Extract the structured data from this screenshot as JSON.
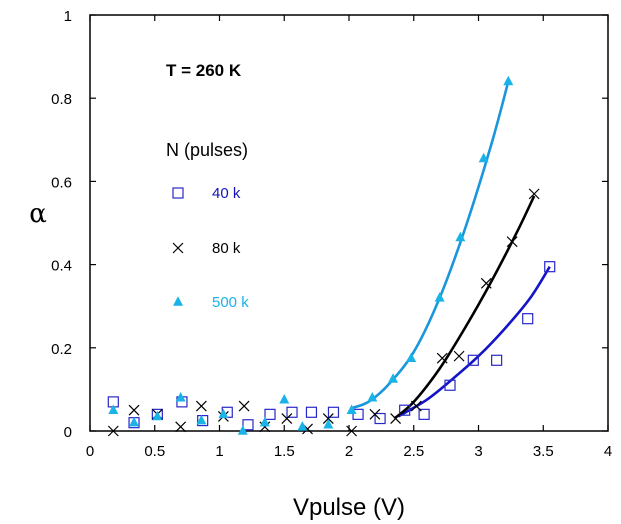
{
  "chart_data": {
    "type": "scatter",
    "xlabel": "Vpulse (V)",
    "ylabel": "α",
    "xlim": [
      0,
      4
    ],
    "ylim": [
      0,
      1
    ],
    "x_ticks": [
      "0",
      "0.5",
      "1",
      "1.5",
      "2",
      "2.5",
      "3",
      "3.5",
      "4"
    ],
    "y_ticks": [
      "0",
      "0.2",
      "0.4",
      "0.6",
      "0.8",
      "1"
    ],
    "grid": false,
    "legend_title": "N (pulses)",
    "annotation": "T = 260 K",
    "series": [
      {
        "name": "40 k",
        "marker": "open-square",
        "color": "#2828c8",
        "points": [
          [
            0.18,
            0.07
          ],
          [
            0.34,
            0.02
          ],
          [
            0.52,
            0.04
          ],
          [
            0.71,
            0.07
          ],
          [
            0.87,
            0.025
          ],
          [
            1.06,
            0.045
          ],
          [
            1.22,
            0.015
          ],
          [
            1.39,
            0.04
          ],
          [
            1.56,
            0.045
          ],
          [
            1.71,
            0.045
          ],
          [
            1.88,
            0.045
          ],
          [
            2.07,
            0.04
          ],
          [
            2.24,
            0.03
          ],
          [
            2.43,
            0.05
          ],
          [
            2.58,
            0.04
          ],
          [
            2.78,
            0.11
          ],
          [
            2.96,
            0.17
          ],
          [
            3.14,
            0.17
          ],
          [
            3.38,
            0.27
          ],
          [
            3.55,
            0.395
          ]
        ],
        "fit": [
          [
            2.38,
            0.035
          ],
          [
            2.6,
            0.075
          ],
          [
            2.8,
            0.125
          ],
          [
            3.0,
            0.18
          ],
          [
            3.2,
            0.245
          ],
          [
            3.4,
            0.32
          ],
          [
            3.55,
            0.395
          ]
        ],
        "fit_color": "#1414c8"
      },
      {
        "name": "80 k",
        "marker": "cross",
        "color": "#000000",
        "points": [
          [
            0.18,
            0.0
          ],
          [
            0.34,
            0.05
          ],
          [
            0.52,
            0.04
          ],
          [
            0.7,
            0.01
          ],
          [
            0.86,
            0.06
          ],
          [
            1.03,
            0.035
          ],
          [
            1.19,
            0.06
          ],
          [
            1.35,
            0.01
          ],
          [
            1.52,
            0.03
          ],
          [
            1.68,
            0.005
          ],
          [
            1.84,
            0.03
          ],
          [
            2.02,
            0.0
          ],
          [
            2.2,
            0.04
          ],
          [
            2.36,
            0.03
          ],
          [
            2.52,
            0.06
          ],
          [
            2.72,
            0.175
          ],
          [
            2.85,
            0.18
          ],
          [
            3.06,
            0.355
          ],
          [
            3.26,
            0.455
          ],
          [
            3.43,
            0.57
          ]
        ],
        "fit": [
          [
            2.35,
            0.03
          ],
          [
            2.5,
            0.07
          ],
          [
            2.7,
            0.15
          ],
          [
            2.9,
            0.25
          ],
          [
            3.1,
            0.36
          ],
          [
            3.3,
            0.48
          ],
          [
            3.43,
            0.565
          ]
        ],
        "fit_color": "#000000"
      },
      {
        "name": "500 k",
        "marker": "filled-triangle",
        "color": "#1ab3e8",
        "points": [
          [
            0.18,
            0.05
          ],
          [
            0.34,
            0.02
          ],
          [
            0.52,
            0.035
          ],
          [
            0.7,
            0.08
          ],
          [
            0.86,
            0.025
          ],
          [
            1.03,
            0.04
          ],
          [
            1.18,
            0.0
          ],
          [
            1.35,
            0.02
          ],
          [
            1.5,
            0.075
          ],
          [
            1.64,
            0.01
          ],
          [
            1.84,
            0.015
          ],
          [
            2.02,
            0.05
          ],
          [
            2.18,
            0.08
          ],
          [
            2.34,
            0.125
          ],
          [
            2.48,
            0.175
          ],
          [
            2.7,
            0.32
          ],
          [
            2.86,
            0.465
          ],
          [
            3.04,
            0.655
          ],
          [
            3.23,
            0.84
          ]
        ],
        "fit": [
          [
            2.02,
            0.055
          ],
          [
            2.15,
            0.07
          ],
          [
            2.3,
            0.11
          ],
          [
            2.5,
            0.19
          ],
          [
            2.7,
            0.32
          ],
          [
            2.9,
            0.49
          ],
          [
            3.1,
            0.69
          ],
          [
            3.23,
            0.84
          ]
        ],
        "fit_color": "#1a96dc"
      }
    ]
  }
}
